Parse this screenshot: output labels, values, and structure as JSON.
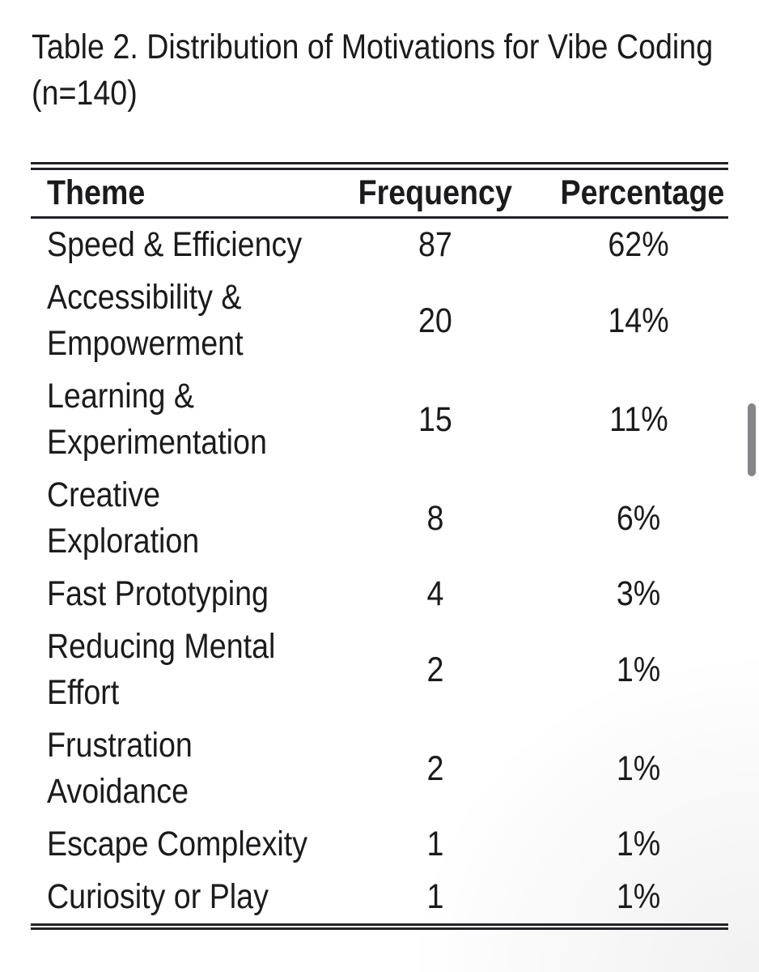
{
  "caption": {
    "line1": "Table 2. Distribution of Motivations for Vibe Coding",
    "line2": "(n=140)"
  },
  "table": {
    "columns": [
      "Theme",
      "Frequency",
      "Percentage"
    ],
    "rows": [
      {
        "theme_lines": [
          "Speed & Efficiency"
        ],
        "frequency": "87",
        "percentage": "62%"
      },
      {
        "theme_lines": [
          "Accessibility &",
          "Empowerment"
        ],
        "frequency": "20",
        "percentage": "14%"
      },
      {
        "theme_lines": [
          "Learning &",
          "Experimentation"
        ],
        "frequency": "15",
        "percentage": "11%"
      },
      {
        "theme_lines": [
          "Creative",
          "Exploration"
        ],
        "frequency": "8",
        "percentage": "6%"
      },
      {
        "theme_lines": [
          "Fast Prototyping"
        ],
        "frequency": "4",
        "percentage": "3%"
      },
      {
        "theme_lines": [
          "Reducing Mental",
          "Effort"
        ],
        "frequency": "2",
        "percentage": "1%"
      },
      {
        "theme_lines": [
          "Frustration",
          "Avoidance"
        ],
        "frequency": "2",
        "percentage": "1%"
      },
      {
        "theme_lines": [
          "Escape Complexity"
        ],
        "frequency": "1",
        "percentage": "1%"
      },
      {
        "theme_lines": [
          "Curiosity or Play"
        ],
        "frequency": "1",
        "percentage": "1%"
      }
    ]
  },
  "colors": {
    "text": "#1b1b1d",
    "rule": "#232327",
    "scrollbar_thumb": "#85858a",
    "background": "#ffffff"
  }
}
